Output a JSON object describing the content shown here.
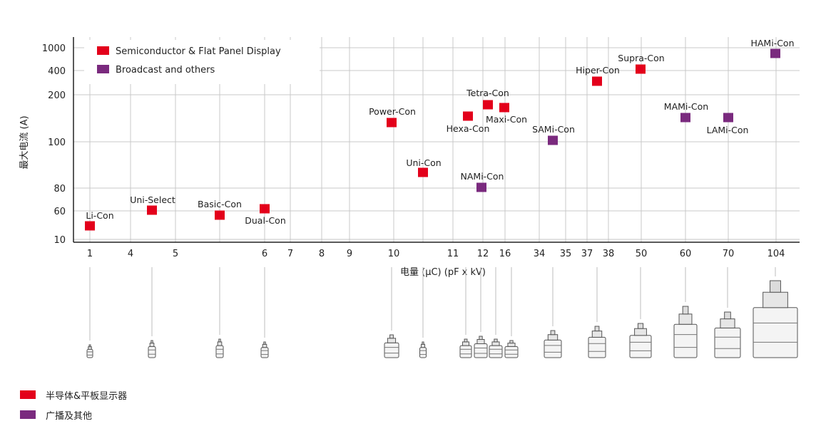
{
  "chart_data": {
    "type": "scatter",
    "ylabel": "最大电流 (A)",
    "xlabel": "电量 (µC) (pF x kV)",
    "x_ticks": [
      "1",
      "4",
      "5",
      "6",
      "7",
      "8",
      "9",
      "10",
      "11",
      "12",
      "16",
      "34",
      "35",
      "37",
      "38",
      "50",
      "60",
      "70",
      "104"
    ],
    "y_ticks": [
      10,
      60,
      80,
      100,
      200,
      400,
      1000
    ],
    "grid": true,
    "legend_position": "top-left",
    "series": [
      {
        "name": "Semiconductor & Flat Panel Display",
        "color": "#e3001b",
        "points": [
          {
            "label": "Li-Con",
            "x": "1",
            "y": 10
          },
          {
            "label": "Uni-Select",
            "x": "4–5",
            "y": 60
          },
          {
            "label": "Basic-Con",
            "x": "5–6",
            "y": 57
          },
          {
            "label": "Dual-Con",
            "x": "6",
            "y": 62
          },
          {
            "label": "Power-Con",
            "x": "10",
            "y": 120
          },
          {
            "label": "Uni-Con",
            "x": "10–11",
            "y": 87
          },
          {
            "label": "Hexa-Con",
            "x": "11–12",
            "y": 130
          },
          {
            "label": "Tetra-Con",
            "x": "12",
            "y": 165
          },
          {
            "label": "Maxi-Con",
            "x": "16",
            "y": 160
          },
          {
            "label": "Hiper-Con",
            "x": "38",
            "y": 275
          },
          {
            "label": "Supra-Con",
            "x": "50",
            "y": 410
          }
        ]
      },
      {
        "name": "Broadcast and others",
        "color": "#7a2a7e",
        "points": [
          {
            "label": "NAMi-Con",
            "x": "12",
            "y": 80
          },
          {
            "label": "SAMi-Con",
            "x": "34–35",
            "y": 100
          },
          {
            "label": "MAMi-Con",
            "x": "60",
            "y": 140
          },
          {
            "label": "LAMi-Con",
            "x": "70",
            "y": 140
          },
          {
            "label": "HAMi-Con",
            "x": "104",
            "y": 850
          }
        ]
      }
    ]
  },
  "bottom_legend": [
    {
      "label": "半导体&平板显示器",
      "color": "#e3001b"
    },
    {
      "label": "广播及其他",
      "color": "#7a2a7e"
    }
  ]
}
